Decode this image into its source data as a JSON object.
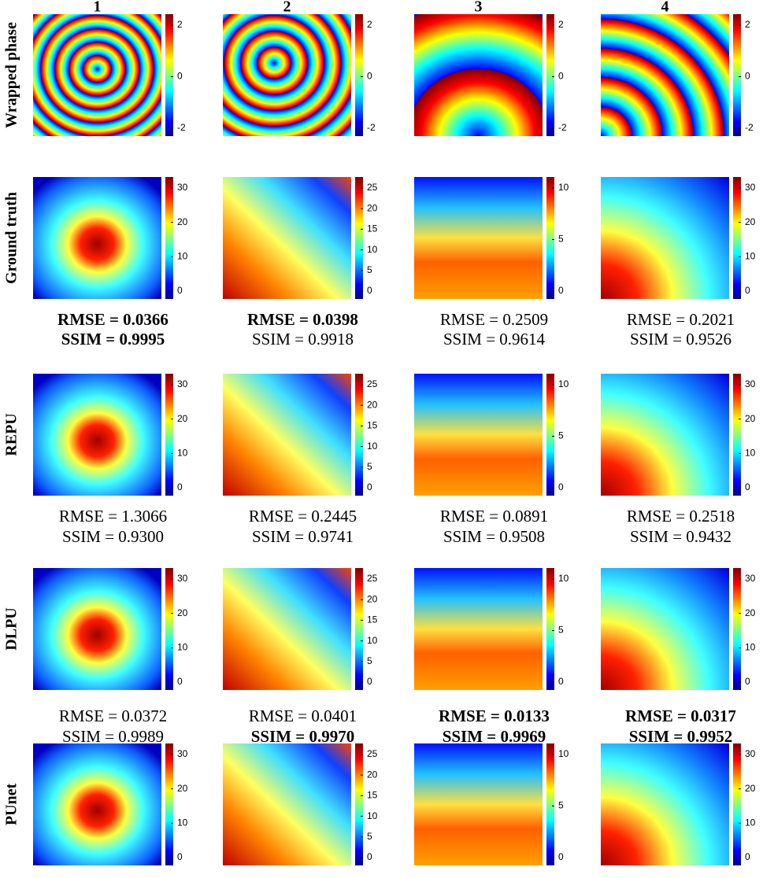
{
  "columns": [
    "1",
    "2",
    "3",
    "4"
  ],
  "rows": [
    {
      "label": "Wrapped phase",
      "colorbars": [
        [
          "2",
          "0",
          "-2"
        ],
        [
          "2",
          "0",
          "-2"
        ],
        [
          "2",
          "0",
          "-2"
        ],
        [
          "2",
          "0",
          "-2"
        ]
      ]
    },
    {
      "label": "Ground truth",
      "colorbars": [
        [
          "30",
          "20",
          "10",
          "0"
        ],
        [
          "25",
          "20",
          "15",
          "10",
          "5",
          "0"
        ],
        [
          "10",
          "5",
          "0"
        ],
        [
          "30",
          "20",
          "10",
          "0"
        ]
      ]
    },
    {
      "label": "REPU",
      "colorbars": [
        [
          "30",
          "20",
          "10",
          "0"
        ],
        [
          "25",
          "20",
          "15",
          "10",
          "5",
          "0"
        ],
        [
          "10",
          "5",
          "0"
        ],
        [
          "30",
          "20",
          "10",
          "0"
        ]
      ]
    },
    {
      "label": "DLPU",
      "colorbars": [
        [
          "30",
          "20",
          "10",
          "0"
        ],
        [
          "25",
          "20",
          "15",
          "10",
          "5",
          "0"
        ],
        [
          "10",
          "5",
          "0"
        ],
        [
          "30",
          "20",
          "10",
          "0"
        ]
      ]
    },
    {
      "label": "PUnet",
      "colorbars": [
        [
          "30",
          "20",
          "10",
          "0"
        ],
        [
          "25",
          "20",
          "15",
          "10",
          "5",
          "0"
        ],
        [
          "10",
          "5",
          "0"
        ],
        [
          "30",
          "20",
          "10",
          "0"
        ]
      ]
    }
  ],
  "metrics": [
    {
      "panels": [
        {
          "rmse": "RMSE = 0.0366",
          "ssim": "SSIM = 0.9995",
          "rmse_bold": true,
          "ssim_bold": true
        },
        {
          "rmse": "RMSE = 0.0398",
          "ssim": "SSIM = 0.9918",
          "rmse_bold": true,
          "ssim_bold": false
        },
        {
          "rmse": "RMSE = 0.2509",
          "ssim": "SSIM = 0.9614",
          "rmse_bold": false,
          "ssim_bold": false
        },
        {
          "rmse": "RMSE = 0.2021",
          "ssim": "SSIM = 0.9526",
          "rmse_bold": false,
          "ssim_bold": false
        }
      ]
    },
    {
      "panels": [
        {
          "rmse": "RMSE = 1.3066",
          "ssim": "SSIM = 0.9300",
          "rmse_bold": false,
          "ssim_bold": false
        },
        {
          "rmse": "RMSE = 0.2445",
          "ssim": "SSIM = 0.9741",
          "rmse_bold": false,
          "ssim_bold": false
        },
        {
          "rmse": "RMSE = 0.0891",
          "ssim": "SSIM = 0.9508",
          "rmse_bold": false,
          "ssim_bold": false
        },
        {
          "rmse": "RMSE = 0.2518",
          "ssim": "SSIM = 0.9432",
          "rmse_bold": false,
          "ssim_bold": false
        }
      ]
    },
    {
      "panels": [
        {
          "rmse": "RMSE = 0.0372",
          "ssim": "SSIM = 0.9989",
          "rmse_bold": false,
          "ssim_bold": false
        },
        {
          "rmse": "RMSE = 0.0401",
          "ssim": "SSIM = 0.9970",
          "rmse_bold": false,
          "ssim_bold": true
        },
        {
          "rmse": "RMSE = 0.0133",
          "ssim": "SSIM = 0.9969",
          "rmse_bold": true,
          "ssim_bold": true
        },
        {
          "rmse": "RMSE = 0.0317",
          "ssim": "SSIM = 0.9952",
          "rmse_bold": true,
          "ssim_bold": true
        }
      ]
    }
  ]
}
